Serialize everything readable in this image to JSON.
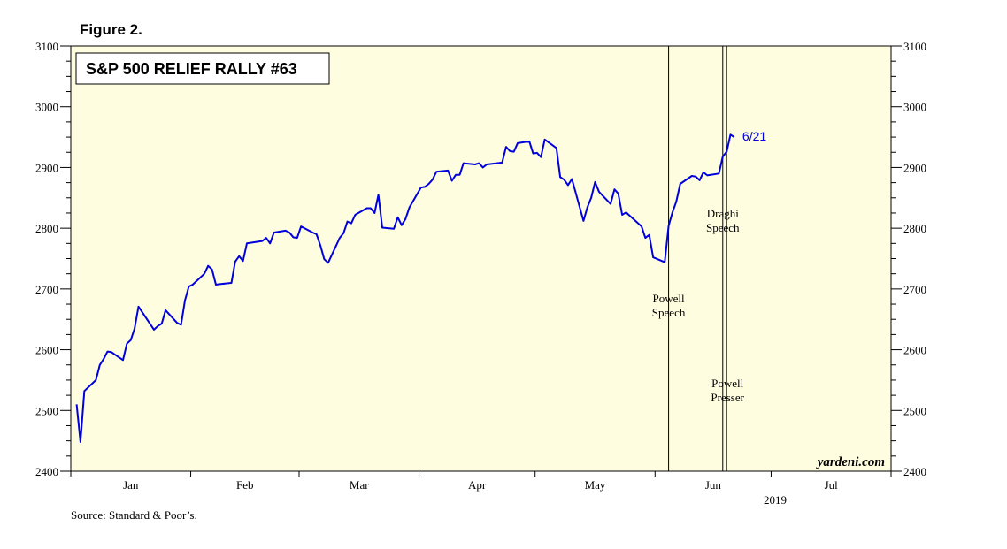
{
  "figure_label": "Figure 2.",
  "source": "Source: Standard & Poor’s.",
  "watermark": "yardeni.com",
  "chart_data": {
    "type": "line",
    "title": "S&P 500 RELIEF RALLY #63",
    "year_label": "2019",
    "x_months": [
      "Jan",
      "Feb",
      "Mar",
      "Apr",
      "May",
      "Jun",
      "Jul"
    ],
    "xlim": [
      "2019-01-01",
      "2019-07-31"
    ],
    "ylim": [
      2400,
      3100
    ],
    "yticks": [
      2400,
      2500,
      2600,
      2700,
      2800,
      2900,
      3000,
      3100
    ],
    "line_color": "#0000dd",
    "plot_background": "#fffde0",
    "end_label": "6/21",
    "events": [
      {
        "date": "2019-06-04",
        "label_lines": [
          "Powell",
          "Speech"
        ]
      },
      {
        "date": "2019-06-18",
        "label_lines": [
          "Draghi",
          "Speech"
        ]
      },
      {
        "date": "2019-06-19",
        "label_lines": [
          "Powell",
          "Presser"
        ]
      }
    ],
    "series": [
      {
        "x": [
          "2019-01-02",
          "2019-01-03",
          "2019-01-04",
          "2019-01-07",
          "2019-01-08",
          "2019-01-09",
          "2019-01-10",
          "2019-01-11",
          "2019-01-14",
          "2019-01-15",
          "2019-01-16",
          "2019-01-17",
          "2019-01-18",
          "2019-01-22",
          "2019-01-23",
          "2019-01-24",
          "2019-01-25",
          "2019-01-28",
          "2019-01-29",
          "2019-01-30",
          "2019-01-31",
          "2019-02-01",
          "2019-02-04",
          "2019-02-05",
          "2019-02-06",
          "2019-02-07",
          "2019-02-08",
          "2019-02-11",
          "2019-02-12",
          "2019-02-13",
          "2019-02-14",
          "2019-02-15",
          "2019-02-19",
          "2019-02-20",
          "2019-02-21",
          "2019-02-22",
          "2019-02-25",
          "2019-02-26",
          "2019-02-27",
          "2019-02-28",
          "2019-03-01",
          "2019-03-04",
          "2019-03-05",
          "2019-03-06",
          "2019-03-07",
          "2019-03-08",
          "2019-03-11",
          "2019-03-12",
          "2019-03-13",
          "2019-03-14",
          "2019-03-15",
          "2019-03-18",
          "2019-03-19",
          "2019-03-20",
          "2019-03-21",
          "2019-03-22",
          "2019-03-25",
          "2019-03-26",
          "2019-03-27",
          "2019-03-28",
          "2019-03-29",
          "2019-04-01",
          "2019-04-02",
          "2019-04-03",
          "2019-04-04",
          "2019-04-05",
          "2019-04-08",
          "2019-04-09",
          "2019-04-10",
          "2019-04-11",
          "2019-04-12",
          "2019-04-15",
          "2019-04-16",
          "2019-04-17",
          "2019-04-18",
          "2019-04-22",
          "2019-04-23",
          "2019-04-24",
          "2019-04-25",
          "2019-04-26",
          "2019-04-29",
          "2019-04-30",
          "2019-05-01",
          "2019-05-02",
          "2019-05-03",
          "2019-05-06",
          "2019-05-07",
          "2019-05-08",
          "2019-05-09",
          "2019-05-10",
          "2019-05-13",
          "2019-05-14",
          "2019-05-15",
          "2019-05-16",
          "2019-05-17",
          "2019-05-20",
          "2019-05-21",
          "2019-05-22",
          "2019-05-23",
          "2019-05-24",
          "2019-05-28",
          "2019-05-29",
          "2019-05-30",
          "2019-05-31",
          "2019-06-03",
          "2019-06-04",
          "2019-06-05",
          "2019-06-06",
          "2019-06-07",
          "2019-06-10",
          "2019-06-11",
          "2019-06-12",
          "2019-06-13",
          "2019-06-14",
          "2019-06-17",
          "2019-06-18",
          "2019-06-19",
          "2019-06-20",
          "2019-06-21"
        ],
        "y": [
          2510,
          2448,
          2532,
          2550,
          2575,
          2585,
          2597,
          2596,
          2583,
          2610,
          2616,
          2635,
          2671,
          2633,
          2639,
          2643,
          2665,
          2644,
          2641,
          2681,
          2704,
          2707,
          2725,
          2738,
          2732,
          2707,
          2708,
          2710,
          2745,
          2754,
          2746,
          2775,
          2779,
          2784,
          2775,
          2793,
          2796,
          2793,
          2785,
          2784,
          2803,
          2793,
          2790,
          2772,
          2749,
          2743,
          2784,
          2792,
          2811,
          2808,
          2822,
          2833,
          2833,
          2825,
          2855,
          2801,
          2799,
          2818,
          2805,
          2815,
          2834,
          2867,
          2868,
          2873,
          2880,
          2893,
          2895,
          2878,
          2888,
          2888,
          2907,
          2905,
          2907,
          2900,
          2905,
          2908,
          2934,
          2927,
          2926,
          2940,
          2943,
          2923,
          2924,
          2917,
          2946,
          2932,
          2884,
          2880,
          2871,
          2881,
          2812,
          2834,
          2850,
          2876,
          2860,
          2840,
          2864,
          2857,
          2822,
          2826,
          2803,
          2784,
          2789,
          2752,
          2744,
          2804,
          2826,
          2844,
          2873,
          2886,
          2885,
          2879,
          2892,
          2887,
          2890,
          2918,
          2926,
          2954,
          2950
        ]
      }
    ]
  }
}
